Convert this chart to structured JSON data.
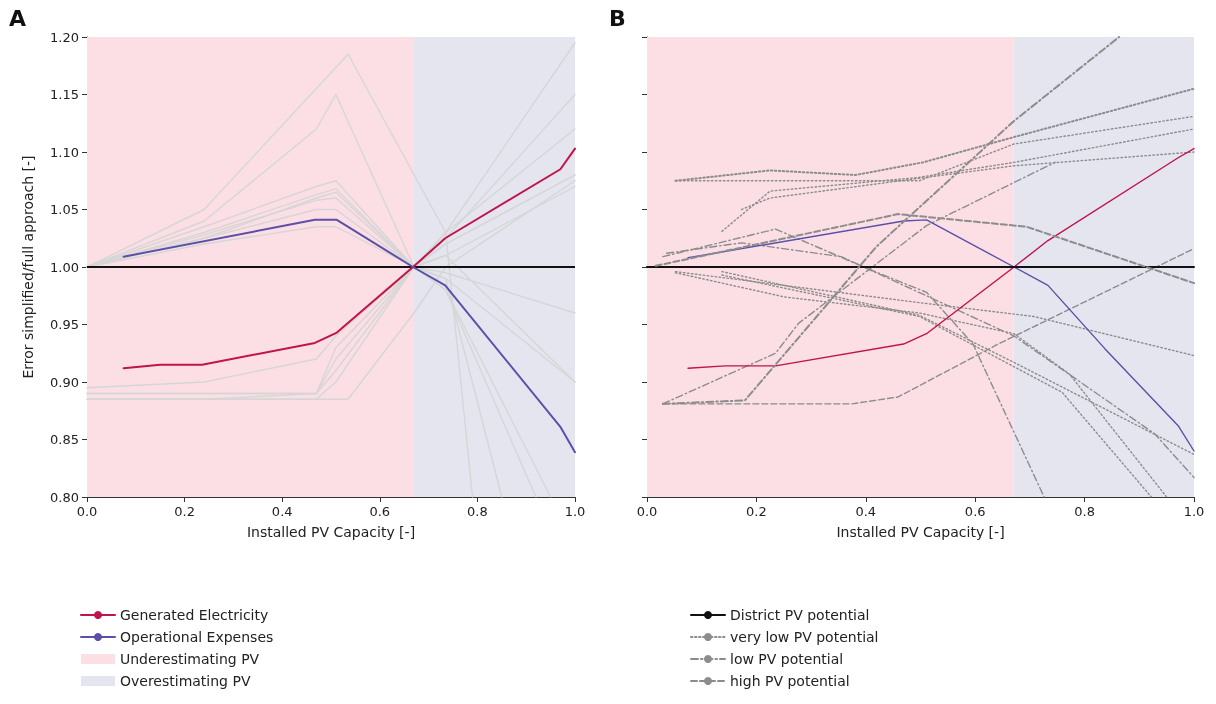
{
  "chart_data": [
    {
      "type": "line",
      "title": "A",
      "xlabel": "Installed PV Capacity [-]",
      "ylabel": "Error simplified/full approach [-]",
      "xlim": [
        0,
        1
      ],
      "xticks": [
        {
          "value": 0,
          "label": "0.0"
        },
        {
          "value": 0.2,
          "label": "0.2"
        },
        {
          "value": 0.4,
          "label": "0.4"
        },
        {
          "value": 0.6,
          "label": "0.6"
        },
        {
          "value": 0.8,
          "label": "0.8"
        },
        {
          "value": 1,
          "label": "1.0"
        }
      ],
      "ylim": [
        0.8,
        1.2
      ],
      "yticks": [
        {
          "value": 0.8,
          "label": "0.80"
        },
        {
          "value": 0.85,
          "label": "0.85"
        },
        {
          "value": 0.9,
          "label": "0.90"
        },
        {
          "value": 0.95,
          "label": "0.95"
        },
        {
          "value": 1,
          "label": "1.00"
        },
        {
          "value": 1.05,
          "label": "1.05"
        },
        {
          "value": 1.1,
          "label": "1.10"
        },
        {
          "value": 1.15,
          "label": "1.15"
        },
        {
          "value": 1.2,
          "label": "1.20"
        }
      ],
      "grid": false,
      "legend": "bottom left",
      "marker": "none",
      "bands": [
        {
          "axis": "x",
          "from": 0,
          "to": 0.67,
          "label": "Underestimating PV",
          "color": "#fbdfe5"
        },
        {
          "axis": "x",
          "from": 0.67,
          "to": 1,
          "label": "Overestimating PV",
          "color": "#e5e5f0"
        }
      ],
      "ref_lines": [
        {
          "axis": "y",
          "value": 1,
          "color": "#111111",
          "line_style": "solid"
        }
      ],
      "series": [
        {
          "color": "#d6d6d6",
          "x": [
            0,
            0.24,
            0.535,
            0.735,
            0.79
          ],
          "values": [
            1.0,
            1.05,
            1.185,
            1.03,
            0.8
          ]
        },
        {
          "color": "#d6d6d6",
          "x": [
            0,
            0.24,
            0.47,
            0.51,
            0.67,
            0.735,
            0.92
          ],
          "values": [
            1.0,
            1.04,
            1.12,
            1.15,
            1.0,
            0.98,
            0.8
          ]
        },
        {
          "color": "#d6d6d6",
          "x": [
            0,
            0.24,
            0.47,
            0.51,
            0.67,
            0.735,
            1.0
          ],
          "values": [
            1.0,
            1.035,
            1.07,
            1.075,
            1.0,
            1.01,
            0.9
          ]
        },
        {
          "color": "#d6d6d6",
          "x": [
            0,
            0.24,
            0.47,
            0.51,
            0.67,
            0.735,
            1.0
          ],
          "values": [
            1.0,
            1.03,
            1.063,
            1.068,
            1.0,
            1.02,
            1.08
          ]
        },
        {
          "color": "#d6d6d6",
          "x": [
            0,
            0.24,
            0.47,
            0.51,
            0.67,
            0.735,
            1.0
          ],
          "values": [
            1.0,
            1.028,
            1.058,
            1.06,
            1.0,
            1.03,
            1.12
          ]
        },
        {
          "color": "#d6d6d6",
          "x": [
            0,
            0.24,
            0.47,
            0.51,
            0.67,
            0.735,
            1.0
          ],
          "values": [
            1.0,
            1.025,
            1.05,
            1.05,
            1.0,
            1.025,
            1.15
          ]
        },
        {
          "color": "#d6d6d6",
          "x": [
            0,
            0.24,
            0.47,
            0.51,
            0.67,
            0.735,
            1.0
          ],
          "values": [
            1.0,
            1.02,
            1.035,
            1.035,
            1.0,
            1.03,
            1.195
          ]
        },
        {
          "color": "#d6d6d6",
          "x": [
            0,
            0.24,
            0.47,
            0.51,
            0.67,
            0.735,
            0.85
          ],
          "values": [
            1.0,
            1.025,
            1.06,
            1.065,
            1.0,
            0.99,
            0.8
          ]
        },
        {
          "color": "#d6d6d6",
          "x": [
            0,
            0.24,
            0.47,
            0.51,
            0.67,
            0.735,
            1.0
          ],
          "values": [
            0.885,
            0.885,
            0.885,
            0.9,
            1.0,
            1.02,
            1.08
          ]
        },
        {
          "color": "#d6d6d6",
          "x": [
            0,
            0.24,
            0.47,
            0.51,
            0.67,
            0.735,
            1.0
          ],
          "values": [
            0.89,
            0.89,
            0.89,
            0.91,
            1.0,
            1.01,
            1.07
          ]
        },
        {
          "color": "#d6d6d6",
          "x": [
            0,
            0.24,
            0.47,
            0.535,
            0.67,
            0.735,
            1.0
          ],
          "values": [
            0.885,
            0.885,
            0.885,
            0.885,
            0.96,
            1.0,
            1.075
          ]
        },
        {
          "color": "#d6d6d6",
          "x": [
            0,
            0.24,
            0.47,
            0.51,
            0.67,
            0.735,
            1.0
          ],
          "values": [
            0.895,
            0.9,
            0.92,
            0.94,
            1.0,
            0.99,
            0.9
          ]
        },
        {
          "color": "#d6d6d6",
          "x": [
            0,
            0.24,
            0.47,
            0.51,
            0.67,
            0.735,
            0.95
          ],
          "values": [
            0.89,
            0.89,
            0.89,
            0.92,
            1.0,
            0.98,
            0.8
          ]
        },
        {
          "color": "#d6d6d6",
          "x": [
            0,
            0.24,
            0.47,
            0.51,
            0.67,
            0.735,
            1.0
          ],
          "values": [
            0.885,
            0.885,
            0.89,
            0.93,
            1.0,
            0.995,
            0.96
          ]
        },
        {
          "name": "Generated Electricity",
          "color": "#c0144a",
          "line_style": "solid",
          "x": [
            0.075,
            0.15,
            0.236,
            0.467,
            0.512,
            0.668,
            0.734,
            0.97,
            1.0
          ],
          "values": [
            0.912,
            0.915,
            0.915,
            0.934,
            0.943,
            1.0,
            1.025,
            1.085,
            1.103
          ]
        },
        {
          "name": "Operational Expenses",
          "color": "#5a50a8",
          "line_style": "solid",
          "x": [
            0.075,
            0.467,
            0.512,
            0.668,
            0.734,
            0.97,
            1.0
          ],
          "values": [
            1.009,
            1.041,
            1.041,
            1.0,
            0.984,
            0.861,
            0.839
          ]
        }
      ]
    },
    {
      "type": "line",
      "title": "B",
      "xlabel": "Installed PV Capacity [-]",
      "xlim": [
        0,
        1
      ],
      "xticks": [
        {
          "value": 0,
          "label": "0.0"
        },
        {
          "value": 0.2,
          "label": "0.2"
        },
        {
          "value": 0.4,
          "label": "0.4"
        },
        {
          "value": 0.6,
          "label": "0.6"
        },
        {
          "value": 0.8,
          "label": "0.8"
        },
        {
          "value": 1,
          "label": "1.0"
        }
      ],
      "ylim": [
        0.8,
        1.2
      ],
      "yticks": [
        0.8,
        0.85,
        0.9,
        0.95,
        1,
        1.05,
        1.1,
        1.15,
        1.2
      ],
      "tick_labels": "x",
      "grid": false,
      "legend": "bottom left",
      "marker": "none",
      "bands": [
        {
          "axis": "x",
          "from": 0,
          "to": 0.67,
          "color": "#fbdfe5"
        },
        {
          "axis": "x",
          "from": 0.67,
          "to": 1,
          "color": "#e5e5f0"
        }
      ],
      "series": [
        {
          "name": "District PV potential",
          "color": "#111111",
          "line_style": "solid",
          "x": [
            0,
            1
          ],
          "values": [
            1.0,
            1.0
          ]
        },
        {
          "name": "very low PV potential",
          "color": "#8c8c8c",
          "line_style": "dotted",
          "x": [
            0.052,
            0.225,
            0.381,
            0.505,
            0.671,
            1.0
          ],
          "values": [
            1.075,
            1.084,
            1.08,
            1.091,
            1.113,
            1.155
          ]
        },
        {
          "color": "#8c8c8c",
          "line_style": "dotted",
          "x": [
            0.052,
            0.498,
            0.671,
            1.0
          ],
          "values": [
            1.075,
            1.075,
            1.107,
            1.131
          ]
        },
        {
          "color": "#8c8c8c",
          "line_style": "dotted",
          "x": [
            0.137,
            0.225,
            0.498,
            0.671,
            1.0
          ],
          "values": [
            1.031,
            1.066,
            1.078,
            1.091,
            1.12
          ]
        },
        {
          "color": "#8c8c8c",
          "line_style": "dotted",
          "x": [
            0.173,
            0.225,
            0.511,
            0.671,
            1.0
          ],
          "values": [
            1.05,
            1.06,
            1.078,
            1.088,
            1.1
          ]
        },
        {
          "color": "#8c8c8c",
          "line_style": "dotted",
          "x": [
            0.052,
            0.251,
            0.498,
            0.671,
            0.772,
            0.95
          ],
          "values": [
            0.995,
            0.974,
            0.96,
            0.942,
            0.907,
            0.8
          ]
        },
        {
          "color": "#8c8c8c",
          "line_style": "dotted",
          "x": [
            0.052,
            0.498,
            0.707,
            1.0
          ],
          "values": [
            0.996,
            0.969,
            0.957,
            0.923
          ]
        },
        {
          "color": "#8c8c8c",
          "line_style": "dotted",
          "x": [
            0.137,
            0.498,
            0.671,
            1.0
          ],
          "values": [
            0.996,
            0.958,
            0.917,
            0.837
          ]
        },
        {
          "color": "#8c8c8c",
          "line_style": "dotted",
          "x": [
            0.137,
            0.498,
            0.759,
            0.922
          ],
          "values": [
            0.993,
            0.957,
            0.891,
            0.8
          ]
        },
        {
          "name": "low PV potential",
          "color": "#8c8c8c",
          "line_style": "dashdot",
          "x": [
            0.029,
            0.179,
            0.42,
            0.671,
            0.863
          ],
          "values": [
            0.881,
            0.884,
            1.018,
            1.127,
            1.2
          ]
        },
        {
          "color": "#8c8c8c",
          "line_style": "dashdot",
          "x": [
            0.029,
            0.235,
            0.277,
            0.511,
            0.746
          ],
          "values": [
            0.881,
            0.925,
            0.951,
            1.036,
            1.091
          ]
        },
        {
          "color": "#8c8c8c",
          "line_style": "dashdot",
          "x": [
            0.029,
            0.235,
            0.401,
            0.511,
            0.596,
            0.726
          ],
          "values": [
            1.009,
            1.033,
            0.999,
            0.978,
            0.933,
            0.8
          ]
        },
        {
          "color": "#8c8c8c",
          "line_style": "dashdot",
          "x": [
            0.036,
            0.173,
            0.355,
            0.671,
            0.928,
            1.0
          ],
          "values": [
            1.012,
            1.021,
            1.009,
            0.94,
            0.855,
            0.817
          ]
        },
        {
          "name": "high PV potential",
          "color": "#8c8c8c",
          "line_style": "dashed",
          "x": [
            0.016,
            0.459,
            0.694,
            1.0
          ],
          "values": [
            1.001,
            1.046,
            1.035,
            0.986
          ]
        },
        {
          "color": "#8c8c8c",
          "line_style": "dashed",
          "x": [
            0.029,
            0.375,
            0.459,
            0.642,
            1.0
          ],
          "values": [
            0.881,
            0.881,
            0.887,
            0.933,
            1.016
          ]
        },
        {
          "color": "#c0144a",
          "line_style": "solid",
          "x": [
            0.075,
            0.143,
            0.235,
            0.469,
            0.511,
            0.671,
            0.733,
            0.971,
            1.0
          ],
          "values": [
            0.912,
            0.914,
            0.914,
            0.933,
            0.942,
            1.0,
            1.023,
            1.095,
            1.103
          ]
        },
        {
          "color": "#5a50a8",
          "line_style": "solid",
          "x": [
            0.075,
            0.469,
            0.511,
            0.671,
            0.733,
            0.837,
            0.971,
            1.0
          ],
          "values": [
            1.008,
            1.04,
            1.041,
            1.0,
            0.984,
            0.929,
            0.862,
            0.84
          ]
        }
      ]
    }
  ]
}
